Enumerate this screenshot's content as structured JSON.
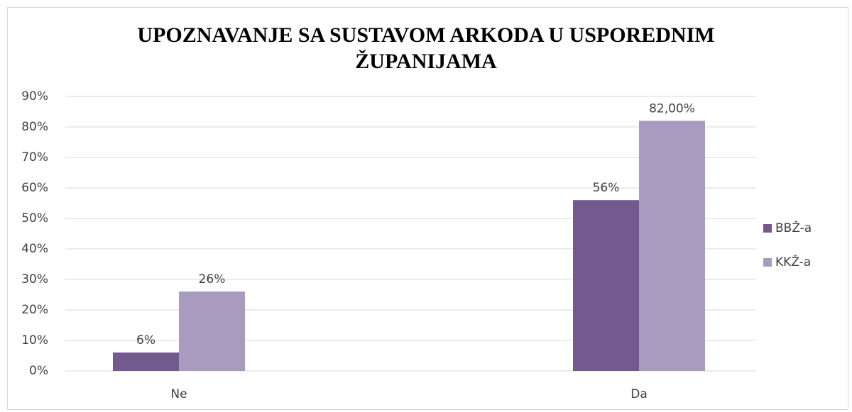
{
  "chart_data": {
    "type": "bar",
    "title": [
      "UPOZNAVANJE SA SUSTAVOM ARKODA U USPOREDNIM",
      "ŽUPANIJAMA"
    ],
    "categories": [
      "Ne",
      "Da"
    ],
    "series": [
      {
        "name": "BBŽ-a",
        "color": "#725a8e",
        "values": [
          6,
          56
        ],
        "value_labels": [
          "6%",
          "56%"
        ]
      },
      {
        "name": "KKŽ-a",
        "color": "#a99bc0",
        "values": [
          26,
          82
        ],
        "value_labels": [
          "26%",
          "82,00%"
        ]
      }
    ],
    "ylim": [
      0,
      90
    ],
    "yticks": [
      {
        "value": 0,
        "label": "0%"
      },
      {
        "value": 10,
        "label": "10%"
      },
      {
        "value": 20,
        "label": "20%"
      },
      {
        "value": 30,
        "label": "30%"
      },
      {
        "value": 40,
        "label": "40%"
      },
      {
        "value": 50,
        "label": "50%"
      },
      {
        "value": 60,
        "label": "60%"
      },
      {
        "value": 70,
        "label": "70%"
      },
      {
        "value": 80,
        "label": "80%"
      },
      {
        "value": 90,
        "label": "90%"
      }
    ],
    "grid": true,
    "legend": "right"
  }
}
